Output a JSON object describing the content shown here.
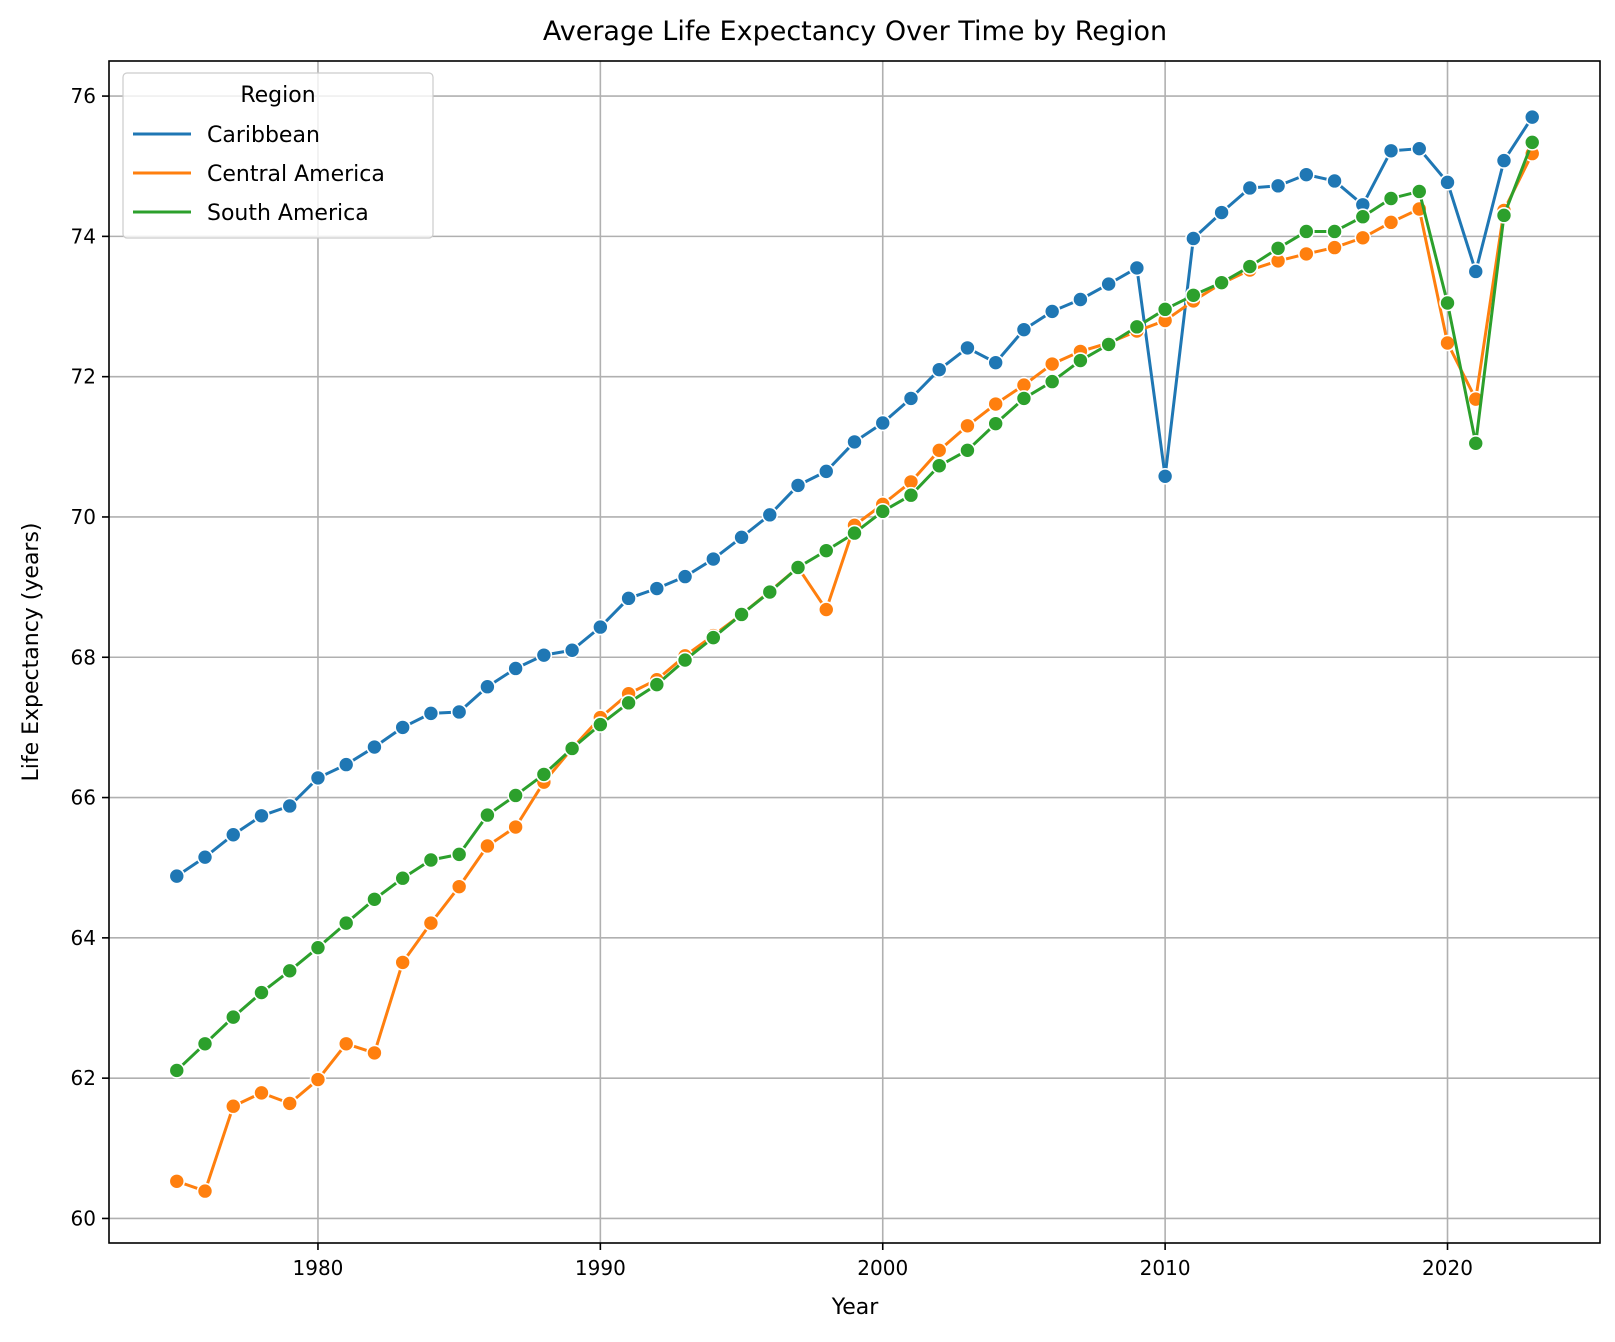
{
  "chart_data": {
    "type": "line",
    "title": "Average Life Expectancy Over Time by Region",
    "xlabel": "Year",
    "ylabel": "Life Expectancy (years)",
    "xlim": [
      1972.6,
      2025.4
    ],
    "ylim": [
      59.65,
      76.5
    ],
    "xticks": [
      1980,
      1990,
      2000,
      2010,
      2020
    ],
    "yticks": [
      60,
      62,
      64,
      66,
      68,
      70,
      72,
      74,
      76
    ],
    "grid": true,
    "legend": {
      "title": "Region",
      "placement": "top-left"
    },
    "x": [
      1975,
      1976,
      1977,
      1978,
      1979,
      1980,
      1981,
      1982,
      1983,
      1984,
      1985,
      1986,
      1987,
      1988,
      1989,
      1990,
      1991,
      1992,
      1993,
      1994,
      1995,
      1996,
      1997,
      1998,
      1999,
      2000,
      2001,
      2002,
      2003,
      2004,
      2005,
      2006,
      2007,
      2008,
      2009,
      2010,
      2011,
      2012,
      2013,
      2014,
      2015,
      2016,
      2017,
      2018,
      2019,
      2020,
      2021,
      2022,
      2023
    ],
    "series": [
      {
        "name": "Caribbean",
        "color": "#1f77b4",
        "values": [
          64.88,
          65.15,
          65.47,
          65.74,
          65.88,
          66.28,
          66.47,
          66.72,
          67.0,
          67.2,
          67.22,
          67.58,
          67.84,
          68.03,
          68.1,
          68.43,
          68.84,
          68.98,
          69.15,
          69.4,
          69.71,
          70.03,
          70.45,
          70.65,
          71.07,
          71.34,
          71.69,
          72.1,
          72.41,
          72.2,
          72.67,
          72.93,
          73.1,
          73.32,
          73.55,
          70.58,
          73.97,
          74.34,
          74.69,
          74.72,
          74.88,
          74.79,
          74.45,
          75.22,
          75.25,
          74.77,
          73.5,
          75.08,
          75.7
        ]
      },
      {
        "name": "Central America",
        "color": "#ff7f0e",
        "values": [
          60.53,
          60.39,
          61.6,
          61.79,
          61.64,
          61.98,
          62.49,
          62.36,
          63.65,
          64.21,
          64.73,
          65.31,
          65.58,
          66.22,
          66.7,
          67.14,
          67.48,
          67.68,
          68.02,
          68.31,
          68.61,
          68.94,
          69.28,
          68.68,
          69.88,
          70.18,
          70.5,
          70.95,
          71.3,
          71.61,
          71.88,
          72.18,
          72.36,
          72.48,
          72.65,
          72.8,
          73.08,
          73.33,
          73.52,
          73.65,
          73.75,
          73.84,
          73.98,
          74.2,
          74.39,
          72.48,
          71.68,
          74.37,
          75.18
        ]
      },
      {
        "name": "South America",
        "color": "#2ca02c",
        "values": [
          62.11,
          62.49,
          62.87,
          63.22,
          63.53,
          63.86,
          64.21,
          64.55,
          64.85,
          65.11,
          65.19,
          65.75,
          66.03,
          66.33,
          66.7,
          67.04,
          67.35,
          67.61,
          67.96,
          68.28,
          68.61,
          68.93,
          69.28,
          69.52,
          69.77,
          70.08,
          70.31,
          70.73,
          70.95,
          71.33,
          71.69,
          71.93,
          72.23,
          72.46,
          72.71,
          72.96,
          73.16,
          73.34,
          73.57,
          73.83,
          74.07,
          74.07,
          74.28,
          74.54,
          74.64,
          73.05,
          71.05,
          74.3,
          75.34
        ]
      }
    ]
  }
}
